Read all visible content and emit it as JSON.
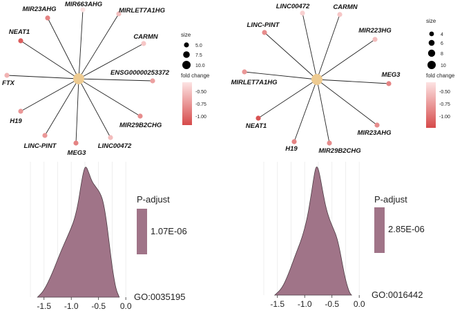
{
  "colors": {
    "hub": "#eecb91",
    "edge": "#222222",
    "fc_low": "#d64a4a",
    "fc_high": "#fde3e3",
    "density_fill": "#a07488",
    "density_stroke": "#4a3a42"
  },
  "panels": [
    {
      "letter": "",
      "network": {
        "type": "network",
        "hub_node": "",
        "nodes": [
          {
            "name": "MIR663AHG",
            "fold_change": -0.35
          },
          {
            "name": "MIRLET7A1HG",
            "fold_change": -0.55
          },
          {
            "name": "CARMN",
            "fold_change": -0.5
          },
          {
            "name": "ENSG00000253372",
            "fold_change": -0.7
          },
          {
            "name": "MIR29B2CHG",
            "fold_change": -0.8
          },
          {
            "name": "LINC00472",
            "fold_change": -0.55
          },
          {
            "name": "MEG3",
            "fold_change": -0.85
          },
          {
            "name": "LINC-PINT",
            "fold_change": -0.75
          },
          {
            "name": "H19",
            "fold_change": -0.75
          },
          {
            "name": "FTX",
            "fold_change": -0.6
          },
          {
            "name": "NEAT1",
            "fold_change": -1.05
          },
          {
            "name": "MIR23AHG",
            "fold_change": -0.85
          }
        ],
        "size_legend": {
          "title": "size",
          "labels": [
            "5.0",
            "7.5",
            "10.0"
          ]
        },
        "fc_legend": {
          "title": "fold change",
          "labels": [
            "-0.50",
            "-0.75",
            "-1.00"
          ]
        }
      },
      "density": {
        "type": "area",
        "x_ticks": [
          "-1.5",
          "-1.0",
          "-0.5",
          "0.0"
        ],
        "xlim": [
          -1.75,
          0.15
        ],
        "points": [
          [
            -1.62,
            0
          ],
          [
            -1.5,
            0.05
          ],
          [
            -1.35,
            0.18
          ],
          [
            -1.2,
            0.34
          ],
          [
            -1.05,
            0.48
          ],
          [
            -0.95,
            0.58
          ],
          [
            -0.88,
            0.7
          ],
          [
            -0.82,
            0.86
          ],
          [
            -0.77,
            0.97
          ],
          [
            -0.73,
            1.0
          ],
          [
            -0.68,
            0.95
          ],
          [
            -0.62,
            0.88
          ],
          [
            -0.55,
            0.84
          ],
          [
            -0.48,
            0.8
          ],
          [
            -0.42,
            0.74
          ],
          [
            -0.36,
            0.6
          ],
          [
            -0.3,
            0.4
          ],
          [
            -0.24,
            0.2
          ],
          [
            -0.18,
            0.06
          ],
          [
            -0.12,
            0
          ]
        ],
        "legend_title": "P-adjust",
        "legend_value": "1.07E-06",
        "term_label": "GO:0035195"
      }
    },
    {
      "letter": "",
      "network": {
        "type": "network",
        "hub_node": "",
        "nodes": [
          {
            "name": "LINC00472",
            "fold_change": -0.45
          },
          {
            "name": "CARMN",
            "fold_change": -0.5
          },
          {
            "name": "MIR223HG",
            "fold_change": -0.55
          },
          {
            "name": "MEG3",
            "fold_change": -0.85
          },
          {
            "name": "MIR23AHG",
            "fold_change": -0.8
          },
          {
            "name": "MIR29B2CHG",
            "fold_change": -0.8
          },
          {
            "name": "H19",
            "fold_change": -0.85
          },
          {
            "name": "NEAT1",
            "fold_change": -1.1
          },
          {
            "name": "MIRLET7A1HG",
            "fold_change": -0.75
          },
          {
            "name": "LINC-PINT",
            "fold_change": -0.8
          }
        ],
        "size_legend": {
          "title": "size",
          "labels": [
            "4",
            "6",
            "8",
            "10"
          ]
        },
        "fc_legend": {
          "title": "fold change",
          "labels": [
            "-0.50",
            "-0.75",
            "-1.00"
          ]
        }
      },
      "density": {
        "type": "area",
        "x_ticks": [
          "-1.5",
          "-1.0",
          "-0.5",
          "0.0"
        ],
        "xlim": [
          -1.75,
          0.15
        ],
        "points": [
          [
            -1.55,
            0
          ],
          [
            -1.42,
            0.05
          ],
          [
            -1.3,
            0.16
          ],
          [
            -1.18,
            0.3
          ],
          [
            -1.05,
            0.44
          ],
          [
            -0.95,
            0.6
          ],
          [
            -0.88,
            0.78
          ],
          [
            -0.83,
            0.92
          ],
          [
            -0.79,
            1.0
          ],
          [
            -0.75,
            0.98
          ],
          [
            -0.71,
            0.9
          ],
          [
            -0.66,
            0.78
          ],
          [
            -0.6,
            0.66
          ],
          [
            -0.54,
            0.58
          ],
          [
            -0.48,
            0.52
          ],
          [
            -0.42,
            0.46
          ],
          [
            -0.36,
            0.36
          ],
          [
            -0.3,
            0.22
          ],
          [
            -0.24,
            0.1
          ],
          [
            -0.18,
            0.02
          ],
          [
            -0.14,
            0
          ]
        ],
        "legend_title": "P-adjust",
        "legend_value": "2.85E-06",
        "term_label": "GO:0016442"
      }
    }
  ],
  "chart_data": [
    {
      "type": "network",
      "hub_node": "",
      "edges_from_hub_to": [
        "MIR663AHG",
        "MIRLET7A1HG",
        "CARMN",
        "ENSG00000253372",
        "MIR29B2CHG",
        "LINC00472",
        "MEG3",
        "LINC-PINT",
        "H19",
        "FTX",
        "NEAT1",
        "MIR23AHG"
      ],
      "legend": {
        "size": [
          "5.0",
          "7.5",
          "10.0"
        ],
        "fold change": [
          "-0.50",
          "-0.75",
          "-1.00"
        ]
      }
    },
    {
      "type": "network",
      "hub_node": "",
      "edges_from_hub_to": [
        "LINC00472",
        "CARMN",
        "MIR223HG",
        "MEG3",
        "MIR23AHG",
        "MIR29B2CHG",
        "H19",
        "NEAT1",
        "MIRLET7A1HG",
        "LINC-PINT"
      ],
      "legend": {
        "size": [
          "4",
          "6",
          "8",
          "10"
        ],
        "fold change": [
          "-0.50",
          "-0.75",
          "-1.00"
        ]
      }
    },
    {
      "type": "area",
      "x_ticks": [
        "-1.5",
        "-1.0",
        "-0.5",
        "0.0"
      ],
      "series": [
        {
          "name": "GO:0035195",
          "peak_x": -0.73
        }
      ],
      "legend": {
        "title": "P-adjust",
        "value": "1.07E-06"
      }
    },
    {
      "type": "area",
      "x_ticks": [
        "-1.5",
        "-1.0",
        "-0.5",
        "0.0"
      ],
      "series": [
        {
          "name": "GO:0016442",
          "peak_x": -0.79
        }
      ],
      "legend": {
        "title": "P-adjust",
        "value": "2.85E-06"
      }
    }
  ]
}
